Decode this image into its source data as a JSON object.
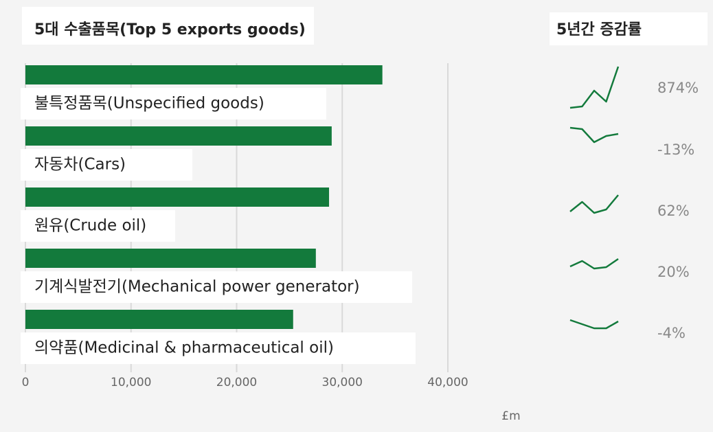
{
  "chart_data": {
    "type": "bar",
    "orientation": "horizontal",
    "title": "5대 수출품목(Top 5 exports goods)",
    "xlabel": "£m",
    "categories": [
      "불특정품목(Unspecified goods)",
      "자동차(Cars)",
      "원유(Crude oil)",
      "기계식발전기(Mechanical power generator)",
      "의약품(Medicinal & pharmaceutical oil)"
    ],
    "values": [
      33800,
      29000,
      28750,
      27500,
      25350
    ],
    "color": "#137a3c",
    "xlim": [
      0,
      40000
    ],
    "xticks": [
      0,
      {
        "value": 10000,
        "label": "10,000"
      },
      {
        "value": 20000,
        "label": "20,000"
      },
      {
        "value": 30000,
        "label": "30,000"
      },
      {
        "value": 40000,
        "label": "40,000"
      }
    ],
    "grid": true,
    "growth_title": "5년간 증감률",
    "growth": {
      "values": [
        874,
        -13,
        62,
        20,
        -4
      ],
      "value_labels": [
        "874%",
        "-13%",
        "62%",
        "20%",
        "-4%"
      ]
    },
    "sparklines": [
      [
        0,
        2,
        25,
        9,
        60
      ],
      [
        60,
        58,
        39,
        48,
        51
      ],
      [
        27,
        41,
        25,
        30,
        51
      ],
      [
        36,
        44,
        33,
        35,
        47
      ],
      [
        47,
        41,
        35,
        35,
        45
      ]
    ]
  }
}
